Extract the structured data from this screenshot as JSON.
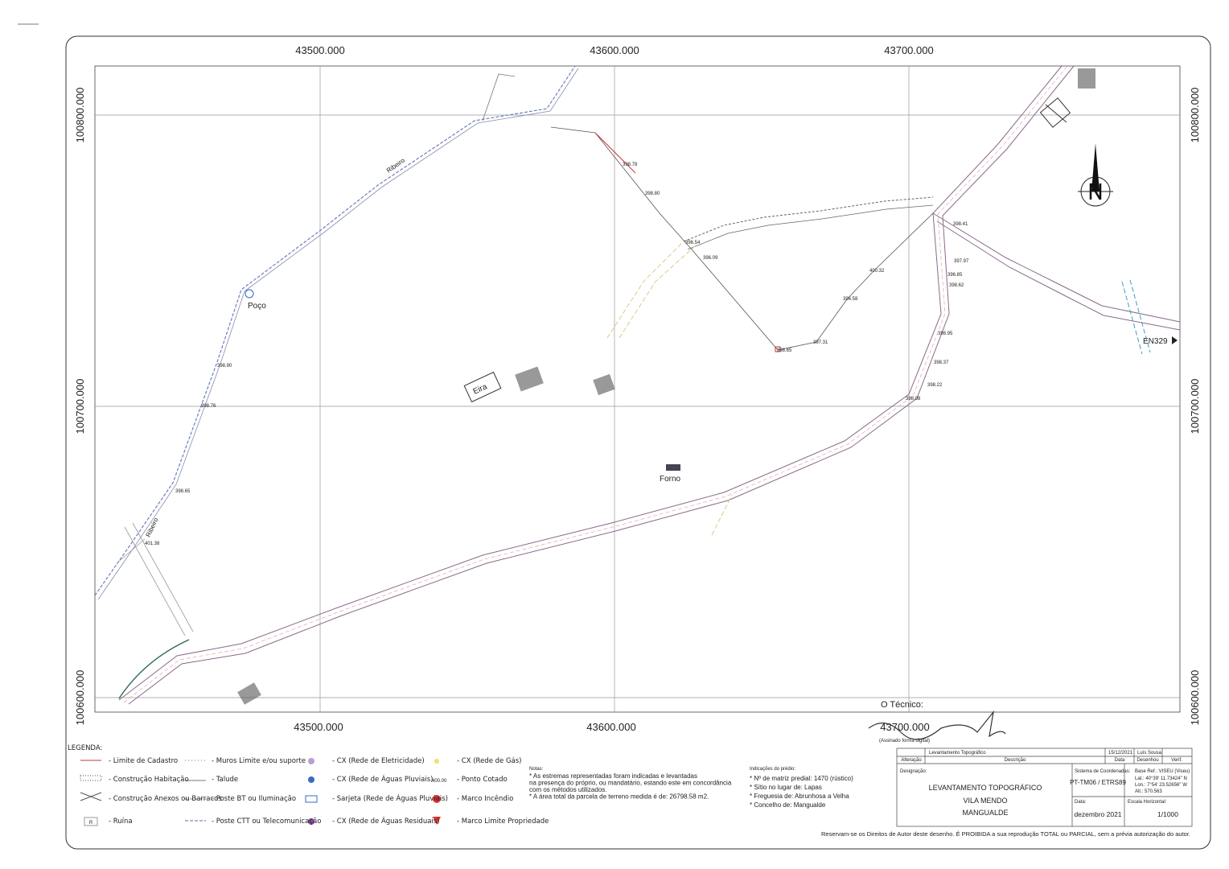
{
  "grid": {
    "x_labels": [
      "43500.000",
      "43600.000",
      "43700.000"
    ],
    "y_labels": [
      "100800.000",
      "100700.000",
      "100600.000"
    ]
  },
  "places": [
    "Poço",
    "Eira",
    "Forno",
    "Ribeiro",
    "Ribeiro",
    "EN329"
  ],
  "elevations": [
    "398.65",
    "397.31",
    "400.32",
    "396.58",
    "398.78",
    "398.80",
    "396.54",
    "396.09",
    "397.97",
    "398.41",
    "398.37",
    "398.22",
    "398.08",
    "398.95",
    "396.85",
    "398.62",
    "398.90",
    "398.76",
    "398.65",
    "401.38"
  ],
  "technician": {
    "label": "O Técnico:",
    "note": "(Assinado forma digital)"
  },
  "legend": {
    "title": "LEGENDA:",
    "ruin_symbol": "R",
    "spot_symbol": "400.00",
    "items": [
      "- Limite de Cadastro",
      "- Construção Habitação",
      "- Construção Anexos ou Barracos",
      "- Ruína",
      "- Muros Limite e/ou suporte",
      "- Talude",
      "- Poste BT ou Iluminação",
      "- Poste CTT ou Telecomunicação",
      "- CX (Rede de Eletricidade)",
      "- CX (Rede de Águas Pluviais)",
      "- Sarjeta (Rede de Águas Pluviais)",
      "- CX (Rede de Águas Residuais)",
      "- CX (Rede de Gás)",
      "- Ponto Cotado",
      "- Marco Incêndio",
      "- Marco Limite Propriedade"
    ]
  },
  "notes": {
    "title": "Notas:",
    "lines": [
      "* As estremas representadas foram indicadas e levantadas",
      "na presença do próprio, ou mandatário, estando este em concordância",
      "com os métodos utilizados.",
      "* A área total da parcela de terreno medida é de: 26798.58 m2."
    ]
  },
  "building_info": {
    "title": "Indicações do prédio:",
    "lines": [
      "* Nº de matriz predial: 1470 (rústico)",
      "* Sítio no lugar de: Lapas",
      "* Freguesia de: Abrunhosa a Velha",
      "* Concelho de: Mangualde"
    ]
  },
  "title_block": {
    "revision": {
      "description": "Levantamento Topográfico",
      "date": "15/12/2021",
      "author": "Luís Sousa"
    },
    "headers": [
      "Alteração",
      "Descrição",
      "Data",
      "Desenhou",
      "Verif."
    ],
    "designation_label": "Designação:",
    "designation": [
      "LEVANTAMENTO TOPOGRÁFICO",
      "VILA MENDO",
      "MANGUALDE"
    ],
    "coord_system_label": "Sistema de Coordenadas:",
    "coord_system": "PT-TM06 / ETRS89",
    "base": [
      "Base Ref.: VISEU (Viseu)",
      "Lat.: 40°39' 11.73424'' N",
      "Lon.: 7°54' 23.52656'' W",
      "Alt.: 570.563"
    ],
    "date_label": "Data:",
    "date": "dezembro 2021",
    "scale_label": "Escala Horizontal:",
    "scale": "1/1000"
  },
  "copyright": "Reservam-se os Direitos de Autor deste desenho. É PROIBIDA a sua reprodução TOTAL ou PARCIAL, sem a prévia autorização do autor."
}
